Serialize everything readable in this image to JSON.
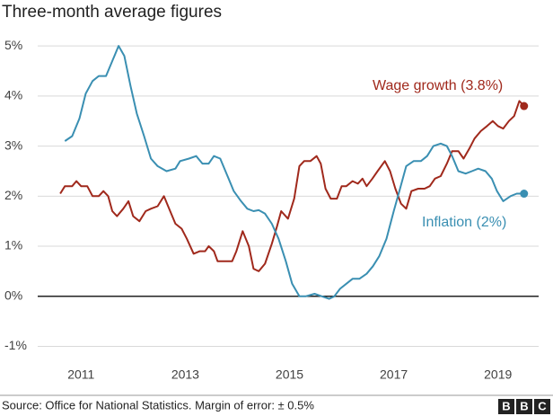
{
  "chart_data": {
    "type": "line",
    "title": "Three-month average figures",
    "source": "Source: Office for National Statistics. Margin of error: ± 0.5%",
    "logo": [
      "B",
      "B",
      "C"
    ],
    "xlim": [
      2010.22,
      2019.78
    ],
    "xticks": [
      2011,
      2013,
      2015,
      2017,
      2019
    ],
    "ylim": [
      -1.35,
      5.2
    ],
    "yticks": [
      {
        "value": -1,
        "label": "-1%"
      },
      {
        "value": 0,
        "label": "0%"
      },
      {
        "value": 1,
        "label": "1%"
      },
      {
        "value": 2,
        "label": "2%"
      },
      {
        "value": 3,
        "label": "3%"
      },
      {
        "value": 4,
        "label": "4%"
      },
      {
        "value": 5,
        "label": "5%"
      }
    ],
    "grid": true,
    "series": [
      {
        "name": "Wage growth (3.8%)",
        "color": "#a0291c",
        "x": [
          2010.6,
          2010.69,
          2010.83,
          2010.91,
          2011.0,
          2011.12,
          2011.22,
          2011.34,
          2011.43,
          2011.52,
          2011.6,
          2011.69,
          2011.81,
          2011.91,
          2012.0,
          2012.12,
          2012.24,
          2012.34,
          2012.47,
          2012.59,
          2012.69,
          2012.81,
          2012.93,
          2013.03,
          2013.16,
          2013.28,
          2013.38,
          2013.45,
          2013.55,
          2013.62,
          2013.76,
          2013.9,
          2013.98,
          2014.1,
          2014.22,
          2014.31,
          2014.41,
          2014.53,
          2014.66,
          2014.76,
          2014.84,
          2014.97,
          2015.09,
          2015.19,
          2015.28,
          2015.4,
          2015.52,
          2015.6,
          2015.69,
          2015.79,
          2015.91,
          2016.0,
          2016.09,
          2016.21,
          2016.31,
          2016.4,
          2016.48,
          2016.59,
          2016.69,
          2016.83,
          2016.93,
          2017.03,
          2017.14,
          2017.24,
          2017.34,
          2017.47,
          2017.59,
          2017.69,
          2017.79,
          2017.9,
          2018.02,
          2018.12,
          2018.24,
          2018.34,
          2018.45,
          2018.55,
          2018.67,
          2018.79,
          2018.9,
          2019.0,
          2019.1,
          2019.21,
          2019.31,
          2019.41,
          2019.5
        ],
        "values": [
          2.05,
          2.2,
          2.2,
          2.3,
          2.2,
          2.2,
          2.0,
          2.0,
          2.1,
          2.0,
          1.7,
          1.6,
          1.75,
          1.9,
          1.6,
          1.5,
          1.7,
          1.75,
          1.8,
          2.0,
          1.75,
          1.45,
          1.35,
          1.15,
          0.85,
          0.9,
          0.9,
          1.0,
          0.9,
          0.7,
          0.7,
          0.7,
          0.9,
          1.3,
          1.0,
          0.55,
          0.5,
          0.65,
          1.05,
          1.4,
          1.7,
          1.55,
          1.95,
          2.6,
          2.7,
          2.7,
          2.8,
          2.65,
          2.15,
          1.95,
          1.95,
          2.2,
          2.2,
          2.3,
          2.25,
          2.35,
          2.2,
          2.35,
          2.5,
          2.7,
          2.5,
          2.15,
          1.85,
          1.75,
          2.1,
          2.15,
          2.15,
          2.2,
          2.35,
          2.4,
          2.65,
          2.9,
          2.9,
          2.75,
          2.95,
          3.15,
          3.3,
          3.4,
          3.5,
          3.4,
          3.35,
          3.5,
          3.6,
          3.9,
          3.8
        ]
      },
      {
        "name": "Inflation (2%)",
        "color": "#3a8fb2",
        "x": [
          2010.69,
          2010.83,
          2010.97,
          2011.09,
          2011.22,
          2011.34,
          2011.48,
          2011.6,
          2011.72,
          2011.83,
          2011.95,
          2012.07,
          2012.21,
          2012.34,
          2012.47,
          2012.64,
          2012.81,
          2012.9,
          2013.07,
          2013.21,
          2013.33,
          2013.45,
          2013.55,
          2013.67,
          2013.79,
          2013.93,
          2014.07,
          2014.19,
          2014.31,
          2014.41,
          2014.53,
          2014.66,
          2014.79,
          2014.93,
          2015.05,
          2015.19,
          2015.31,
          2015.48,
          2015.62,
          2015.76,
          2015.86,
          2015.97,
          2016.09,
          2016.21,
          2016.34,
          2016.48,
          2016.6,
          2016.72,
          2016.86,
          2017.0,
          2017.12,
          2017.24,
          2017.38,
          2017.52,
          2017.64,
          2017.76,
          2017.9,
          2018.02,
          2018.12,
          2018.24,
          2018.38,
          2018.5,
          2018.62,
          2018.76,
          2018.88,
          2018.98,
          2019.1,
          2019.24,
          2019.36,
          2019.5
        ],
        "values": [
          3.1,
          3.2,
          3.55,
          4.05,
          4.3,
          4.4,
          4.4,
          4.7,
          5.0,
          4.8,
          4.2,
          3.65,
          3.2,
          2.75,
          2.6,
          2.5,
          2.55,
          2.7,
          2.75,
          2.8,
          2.65,
          2.65,
          2.8,
          2.75,
          2.45,
          2.1,
          1.9,
          1.75,
          1.7,
          1.72,
          1.65,
          1.45,
          1.15,
          0.7,
          0.25,
          0,
          0,
          0.05,
          0,
          -0.05,
          0,
          0.15,
          0.25,
          0.35,
          0.35,
          0.45,
          0.6,
          0.8,
          1.15,
          1.7,
          2.15,
          2.6,
          2.7,
          2.7,
          2.8,
          3.0,
          3.05,
          3.0,
          2.8,
          2.5,
          2.45,
          2.5,
          2.55,
          2.5,
          2.35,
          2.1,
          1.9,
          2.0,
          2.05,
          2.05
        ]
      }
    ]
  }
}
